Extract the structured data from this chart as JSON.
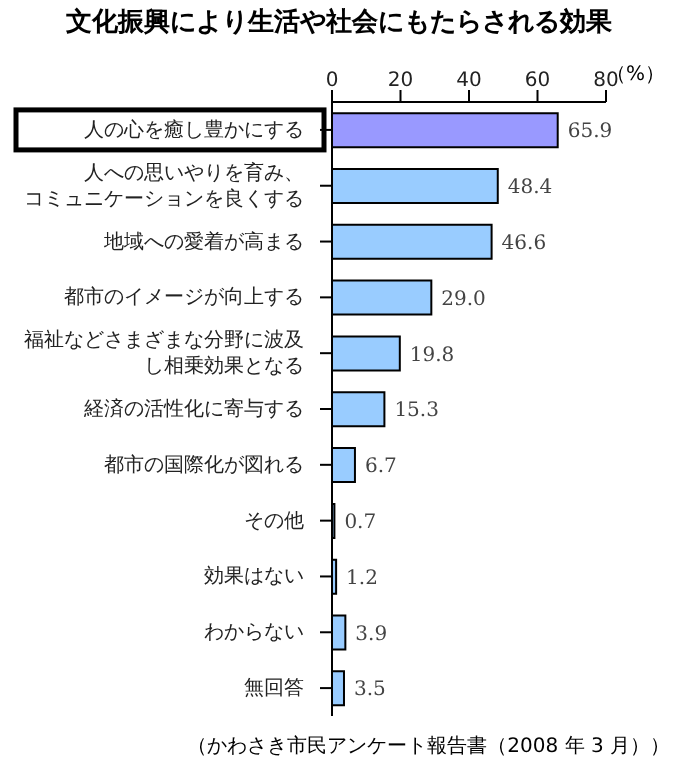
{
  "chart_data": {
    "type": "bar",
    "orientation": "horizontal",
    "title": "文化振興により生活や社会にもたらされる効果",
    "categories": [
      "人の心を癒し豊かにする",
      "人への思いやりを育み、コミュニケーションを良くする",
      "地域への愛着が高まる",
      "都市のイメージが向上する",
      "福祉などさまざまな分野に波及し相乗効果となる",
      "経済の活性化に寄与する",
      "都市の国際化が図れる",
      "その他",
      "効果はない",
      "わからない",
      "無回答"
    ],
    "values": [
      65.9,
      48.4,
      46.6,
      29.0,
      19.8,
      15.3,
      6.7,
      0.7,
      1.2,
      3.9,
      3.5
    ],
    "colors": [
      "#9999ff",
      "#99ccff",
      "#99ccff",
      "#99ccff",
      "#99ccff",
      "#99ccff",
      "#99ccff",
      "#99ccff",
      "#99ccff",
      "#99ccff",
      "#99ccff"
    ],
    "xlim": [
      0,
      80
    ],
    "xticks": [
      0,
      20,
      40,
      60,
      80
    ],
    "xlabel": "（%）",
    "value_labels": [
      "65.9",
      "48.4",
      "46.6",
      "29.0",
      "19.8",
      "15.3",
      "6.7",
      "0.7",
      "1.2",
      "3.9",
      "3.5"
    ],
    "grid": false,
    "annotations": [
      "（かわさき市民アンケート報告書（2008 年 3 月））"
    ]
  }
}
